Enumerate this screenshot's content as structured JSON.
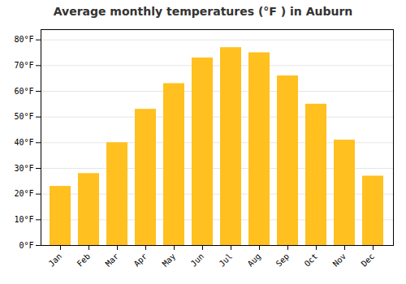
{
  "chart_data": {
    "type": "bar",
    "title": "Average monthly temperatures (°F ) in Auburn",
    "categories": [
      "Jan",
      "Feb",
      "Mar",
      "Apr",
      "May",
      "Jun",
      "Jul",
      "Aug",
      "Sep",
      "Oct",
      "Nov",
      "Dec"
    ],
    "values": [
      23,
      28,
      40,
      53,
      63,
      73,
      77,
      75,
      66,
      55,
      41,
      27
    ],
    "color": "#FFC020",
    "ylim": [
      0,
      84
    ],
    "yticks": [
      {
        "value": 0,
        "label": "0°F"
      },
      {
        "value": 10,
        "label": "10°F"
      },
      {
        "value": 20,
        "label": "20°F"
      },
      {
        "value": 30,
        "label": "30°F"
      },
      {
        "value": 40,
        "label": "40°F"
      },
      {
        "value": 50,
        "label": "50°F"
      },
      {
        "value": 60,
        "label": "60°F"
      },
      {
        "value": 70,
        "label": "70°F"
      },
      {
        "value": 80,
        "label": "80°F"
      }
    ],
    "grid": true
  }
}
